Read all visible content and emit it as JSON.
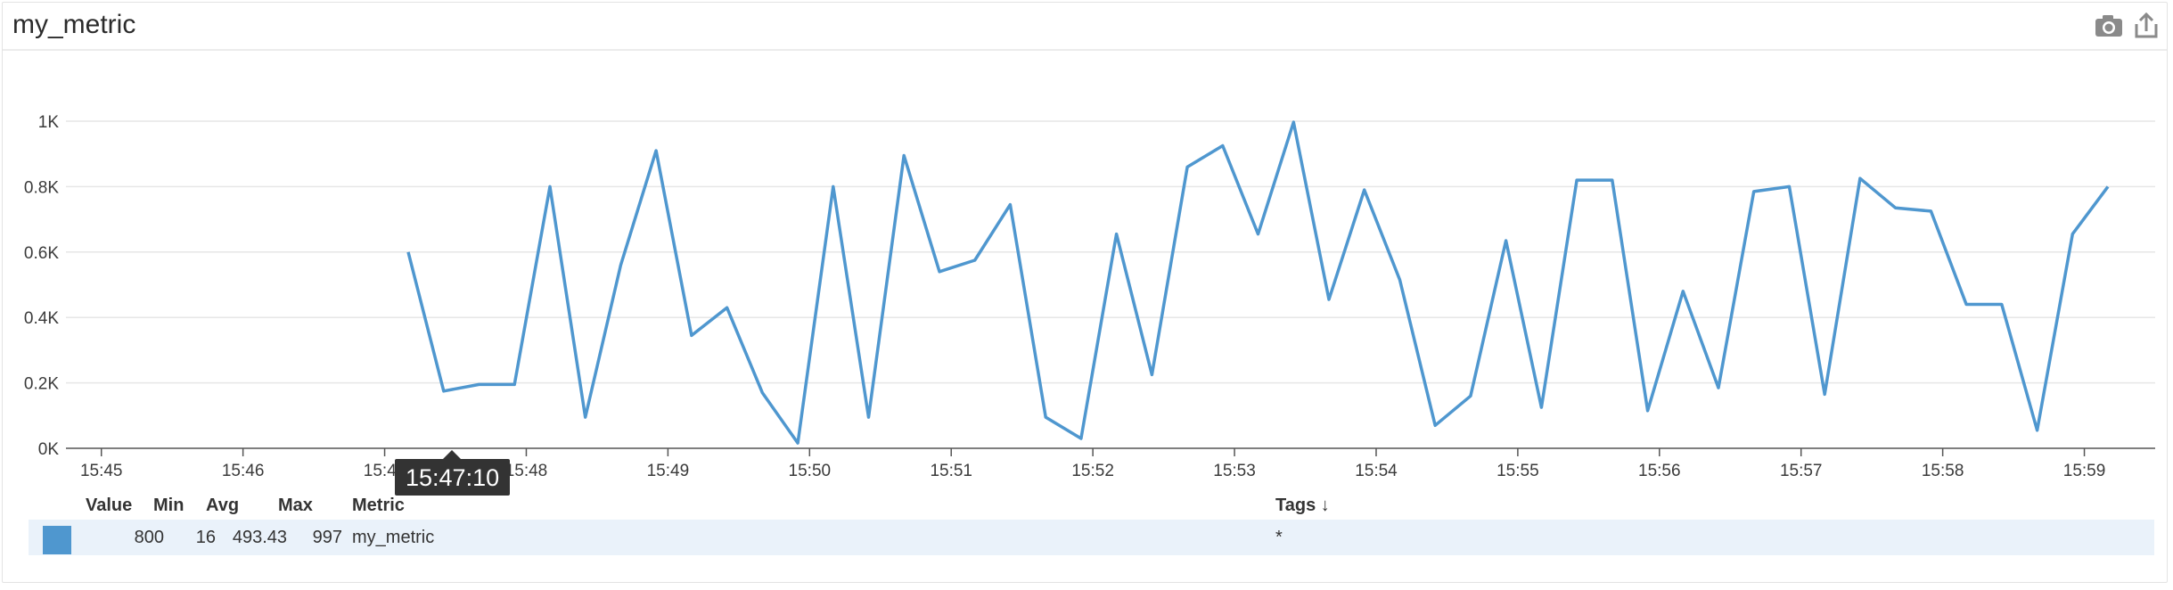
{
  "widget": {
    "title": "my_metric",
    "icons": {
      "camera": "camera-icon",
      "share": "share-icon"
    }
  },
  "tooltip": {
    "time": "15:47:10"
  },
  "legend": {
    "headers": {
      "value": "Value",
      "min": "Min",
      "avg": "Avg",
      "max": "Max",
      "metric": "Metric",
      "tags": "Tags ↓"
    },
    "rows": [
      {
        "color": "#4f97cf",
        "value": "800",
        "min": "16",
        "avg": "493.43",
        "max": "997",
        "metric": "my_metric",
        "tags": "*"
      }
    ]
  },
  "chart_data": {
    "type": "line",
    "title": "",
    "xlabel": "",
    "ylabel": "",
    "ylim": [
      0,
      1000
    ],
    "yticks": [
      {
        "value": 0,
        "label": "0K"
      },
      {
        "value": 200,
        "label": "0.2K"
      },
      {
        "value": 400,
        "label": "0.4K"
      },
      {
        "value": 600,
        "label": "0.6K"
      },
      {
        "value": 800,
        "label": "0.8K"
      },
      {
        "value": 1000,
        "label": "1K"
      }
    ],
    "xlim": [
      "15:44:45",
      "15:59:30"
    ],
    "xticks": [
      "15:45",
      "15:46",
      "15:47",
      "15:48",
      "15:49",
      "15:50",
      "15:51",
      "15:52",
      "15:53",
      "15:54",
      "15:55",
      "15:56",
      "15:57",
      "15:58",
      "15:59"
    ],
    "grid": true,
    "series": [
      {
        "color": "#4f97cf",
        "points": [
          [
            "15:47:10",
            600
          ],
          [
            "15:47:25",
            175
          ],
          [
            "15:47:40",
            195
          ],
          [
            "15:47:55",
            195
          ],
          [
            "15:48:10",
            800
          ],
          [
            "15:48:25",
            95
          ],
          [
            "15:48:40",
            560
          ],
          [
            "15:48:55",
            910
          ],
          [
            "15:49:10",
            345
          ],
          [
            "15:49:25",
            430
          ],
          [
            "15:49:40",
            170
          ],
          [
            "15:49:55",
            16
          ],
          [
            "15:50:10",
            800
          ],
          [
            "15:50:25",
            95
          ],
          [
            "15:50:40",
            895
          ],
          [
            "15:50:55",
            540
          ],
          [
            "15:51:10",
            575
          ],
          [
            "15:51:25",
            745
          ],
          [
            "15:51:40",
            95
          ],
          [
            "15:51:55",
            30
          ],
          [
            "15:52:10",
            655
          ],
          [
            "15:52:25",
            225
          ],
          [
            "15:52:40",
            860
          ],
          [
            "15:52:55",
            925
          ],
          [
            "15:53:10",
            655
          ],
          [
            "15:53:25",
            997
          ],
          [
            "15:53:40",
            455
          ],
          [
            "15:53:55",
            790
          ],
          [
            "15:54:10",
            515
          ],
          [
            "15:54:25",
            70
          ],
          [
            "15:54:40",
            160
          ],
          [
            "15:54:55",
            635
          ],
          [
            "15:55:10",
            125
          ],
          [
            "15:55:25",
            820
          ],
          [
            "15:55:40",
            820
          ],
          [
            "15:55:55",
            115
          ],
          [
            "15:56:10",
            480
          ],
          [
            "15:56:25",
            185
          ],
          [
            "15:56:40",
            785
          ],
          [
            "15:56:55",
            800
          ],
          [
            "15:57:10",
            165
          ],
          [
            "15:57:25",
            825
          ],
          [
            "15:57:40",
            735
          ],
          [
            "15:57:55",
            725
          ],
          [
            "15:58:10",
            440
          ],
          [
            "15:58:25",
            440
          ],
          [
            "15:58:40",
            55
          ],
          [
            "15:58:55",
            655
          ],
          [
            "15:59:10",
            800
          ]
        ]
      }
    ]
  }
}
